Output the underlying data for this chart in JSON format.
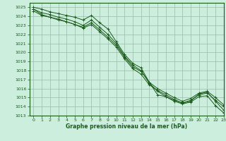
{
  "title": "Graphe pression niveau de la mer (hPa)",
  "bg_color": "#cceedd",
  "grid_color": "#99bbaa",
  "line_color": "#1a5c1a",
  "xlim": [
    -0.5,
    23
  ],
  "ylim": [
    1013,
    1025.5
  ],
  "xticks": [
    0,
    1,
    2,
    3,
    4,
    5,
    6,
    7,
    8,
    9,
    10,
    11,
    12,
    13,
    14,
    15,
    16,
    17,
    18,
    19,
    20,
    21,
    22,
    23
  ],
  "yticks": [
    1013,
    1014,
    1015,
    1016,
    1017,
    1018,
    1019,
    1020,
    1021,
    1022,
    1023,
    1024,
    1025
  ],
  "series": [
    [
      1025.0,
      1024.8,
      1024.5,
      1024.3,
      1024.1,
      1023.9,
      1023.6,
      1024.1,
      1023.3,
      1022.6,
      1021.2,
      1019.8,
      1018.8,
      1018.3,
      1016.7,
      1015.3,
      1015.1,
      1014.6,
      1014.3,
      1014.5,
      1015.1,
      1015.2,
      1014.1,
      1013.3
    ],
    [
      1024.8,
      1024.4,
      1024.2,
      1023.9,
      1023.7,
      1023.4,
      1023.0,
      1023.6,
      1022.8,
      1022.0,
      1021.0,
      1019.6,
      1018.6,
      1018.0,
      1016.6,
      1015.7,
      1015.1,
      1014.7,
      1014.4,
      1014.6,
      1015.4,
      1015.6,
      1014.6,
      1013.6
    ],
    [
      1024.6,
      1024.1,
      1023.9,
      1023.7,
      1023.4,
      1023.1,
      1022.8,
      1023.3,
      1022.5,
      1021.7,
      1020.8,
      1019.5,
      1018.4,
      1017.9,
      1016.7,
      1016.0,
      1015.5,
      1015.0,
      1014.6,
      1014.9,
      1015.5,
      1015.7,
      1015.0,
      1014.2
    ],
    [
      1024.8,
      1024.2,
      1023.9,
      1023.6,
      1023.4,
      1023.1,
      1022.7,
      1023.1,
      1022.3,
      1021.5,
      1020.6,
      1019.3,
      1018.2,
      1017.6,
      1016.4,
      1015.8,
      1015.3,
      1014.8,
      1014.4,
      1014.7,
      1015.3,
      1015.5,
      1014.7,
      1014.0
    ]
  ]
}
